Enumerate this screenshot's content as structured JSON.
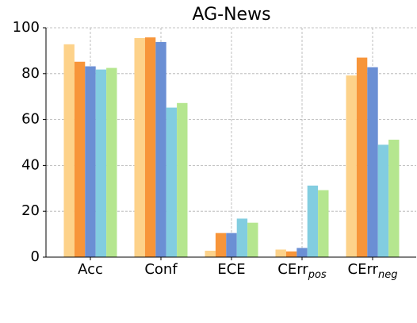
{
  "chart_data": {
    "type": "bar",
    "title": "AG-News",
    "categories": [
      "Acc",
      "Conf",
      "ECE",
      "CErr_pos",
      "CErr_neg"
    ],
    "series": [
      {
        "color": "#fdd28a",
        "values": [
          92.8,
          95.5,
          2.8,
          3.3,
          79.2
        ]
      },
      {
        "color": "#f7953a",
        "values": [
          85.2,
          95.8,
          10.5,
          2.5,
          87.0
        ]
      },
      {
        "color": "#6b8fd4",
        "values": [
          83.2,
          93.8,
          10.5,
          4.0,
          82.8
        ]
      },
      {
        "color": "#82cde0",
        "values": [
          81.8,
          65.2,
          16.8,
          31.2,
          49.0
        ]
      },
      {
        "color": "#b5e68f",
        "values": [
          82.5,
          67.2,
          15.0,
          29.2,
          51.2
        ]
      }
    ],
    "ylim": [
      0,
      100
    ],
    "yticks": [
      0,
      20,
      40,
      60,
      80,
      100
    ],
    "grid": true
  }
}
